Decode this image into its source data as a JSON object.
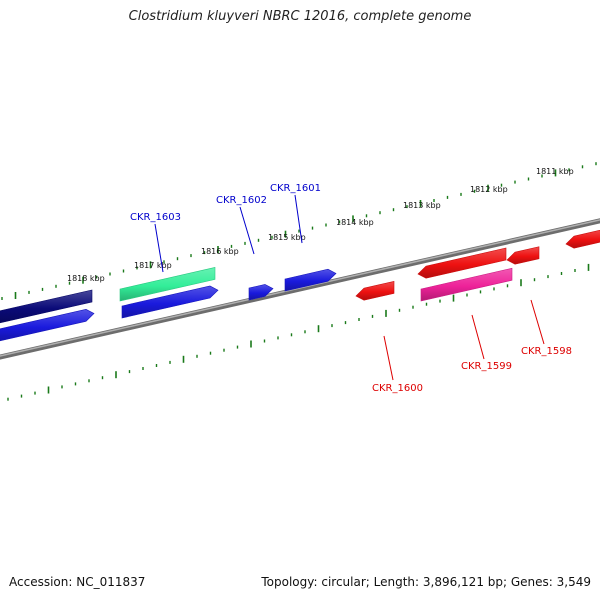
{
  "title": "Clostridium kluyveri NBRC 12016, complete genome",
  "footer": {
    "accession": "Accession: NC_011837",
    "summary": "Topology: circular; Length: 3,896,121 bp; Genes: 3,549"
  },
  "colors": {
    "backbone": "#808080",
    "tick": "#1a7a1a",
    "label_forward": "#0000cc",
    "label_reverse": "#dd0000"
  },
  "kbp_labels": [
    "1818 kbp",
    "1817 kbp",
    "1816 kbp",
    "1815 kbp",
    "1814 kbp",
    "1813 kbp",
    "1812 kbp",
    "1811 kbp"
  ],
  "gene_labels": [
    {
      "text": "CKR_1603",
      "strand": "forward"
    },
    {
      "text": "CKR_1602",
      "strand": "forward"
    },
    {
      "text": "CKR_1601",
      "strand": "forward"
    },
    {
      "text": "CKR_1600",
      "strand": "reverse"
    },
    {
      "text": "CKR_1599",
      "strand": "reverse"
    },
    {
      "text": "CKR_1598",
      "strand": "reverse"
    }
  ],
  "features": [
    {
      "name": "gene-navy",
      "color": "#0a0a78"
    },
    {
      "name": "gene-teal",
      "color": "#33ee99"
    },
    {
      "name": "cds-blue-1",
      "color": "#1a1add"
    },
    {
      "name": "cds-blue-2",
      "color": "#1a1add"
    },
    {
      "name": "cds-blue-3",
      "color": "#1a1add"
    },
    {
      "name": "cds-blue-4",
      "color": "#1a1add"
    },
    {
      "name": "cds-red-1",
      "color": "#ee1111"
    },
    {
      "name": "cds-red-2",
      "color": "#ee1111"
    },
    {
      "name": "cds-red-3",
      "color": "#ee1111"
    },
    {
      "name": "cds-red-4",
      "color": "#ee1111"
    },
    {
      "name": "gene-magenta",
      "color": "#ee2299"
    }
  ]
}
